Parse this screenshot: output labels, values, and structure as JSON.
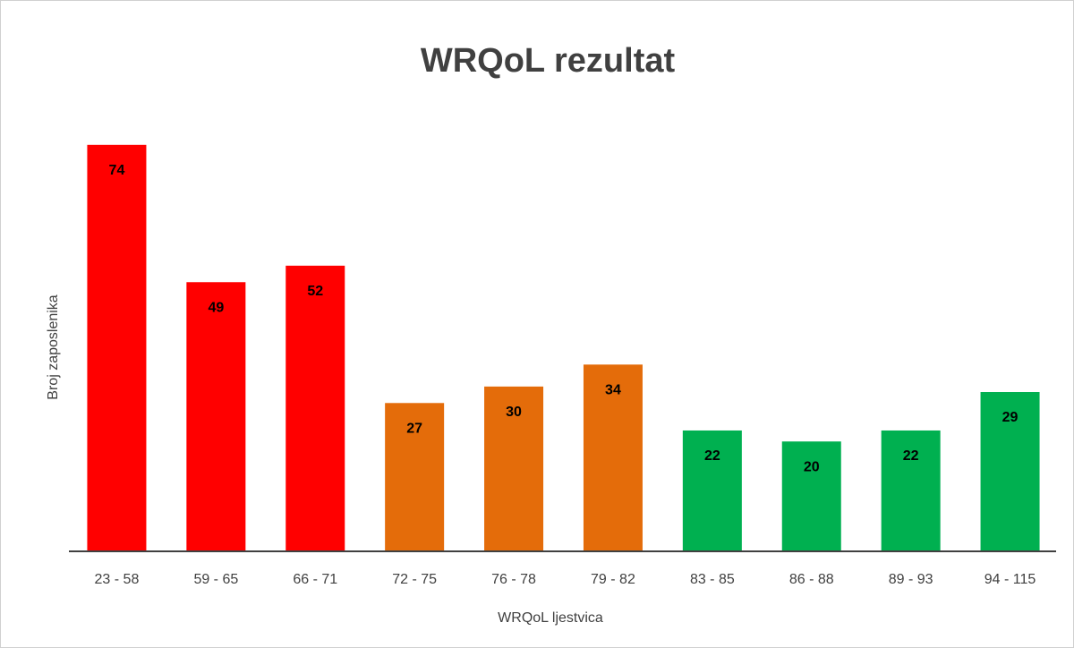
{
  "chart_data": {
    "type": "bar",
    "title": "WRQoL rezultat",
    "x_label": "WRQoL ljestvica",
    "y_label": "Broj zaposlenika",
    "categories": [
      "23 - 58",
      "59 - 65",
      "66 - 71",
      "72 - 75",
      "76 - 78",
      "79 - 82",
      "83 - 85",
      "86 - 88",
      "89 - 93",
      "94 - 115"
    ],
    "values": [
      74,
      49,
      52,
      27,
      30,
      34,
      22,
      20,
      22,
      29
    ],
    "colors": [
      "#ff0000",
      "#ff0000",
      "#ff0000",
      "#e46c0a",
      "#e46c0a",
      "#e46c0a",
      "#00b050",
      "#00b050",
      "#00b050",
      "#00b050"
    ],
    "ylim": [
      0,
      80
    ],
    "grid": false
  }
}
